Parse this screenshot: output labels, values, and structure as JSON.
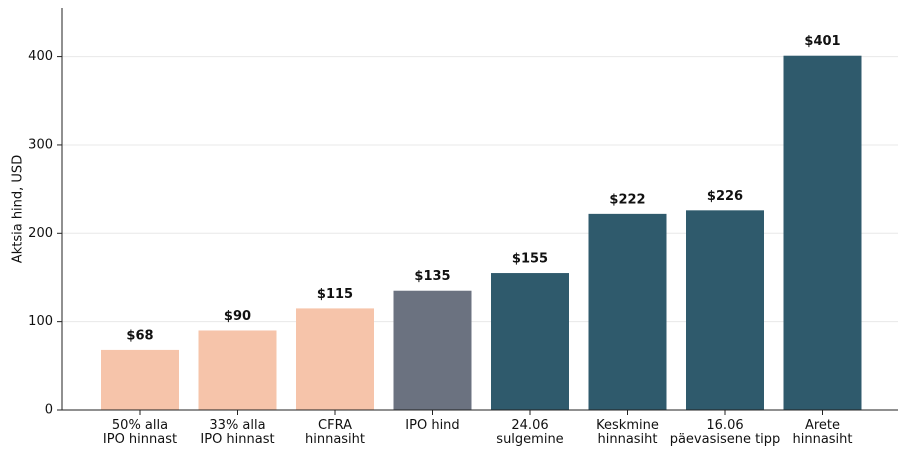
{
  "chart_data": {
    "type": "bar",
    "y_label": "Aktsia hind, USD",
    "categories": [
      [
        "50% alla",
        "IPO hinnast"
      ],
      [
        "33% alla",
        "IPO hinnast"
      ],
      [
        "CFRA",
        "hinnasiht"
      ],
      [
        "IPO hind"
      ],
      [
        "24.06",
        "sulgemine"
      ],
      [
        "Keskmine",
        "hinnasiht"
      ],
      [
        "16.06",
        "päevasisene tipp"
      ],
      [
        "Arete",
        "hinnasiht"
      ]
    ],
    "values": [
      68,
      90,
      115,
      135,
      155,
      222,
      226,
      401
    ],
    "value_labels": [
      "$68",
      "$90",
      "$115",
      "$135",
      "$155",
      "$222",
      "$226",
      "$401"
    ],
    "colors": [
      "#f6c4aa",
      "#f6c4aa",
      "#f6c4aa",
      "#6b7280",
      "#2f5a6c",
      "#2f5a6c",
      "#2f5a6c",
      "#2f5a6c"
    ],
    "ylim": [
      0,
      455
    ],
    "yticks": [
      0,
      100,
      200,
      300,
      400
    ],
    "grid": true
  }
}
